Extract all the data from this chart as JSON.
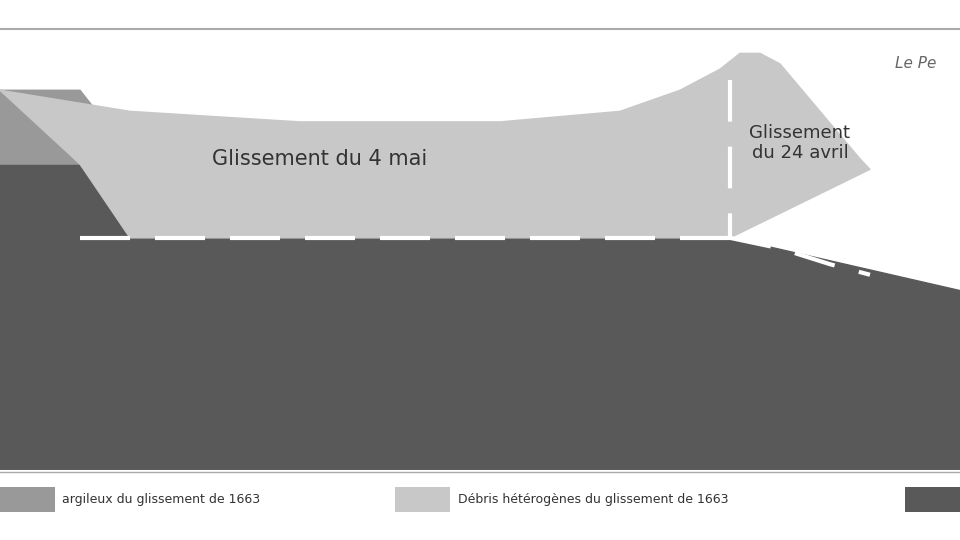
{
  "background_color": "#ffffff",
  "dark_layer_color": "#595959",
  "light_layer_color": "#c8c8c8",
  "medium_layer_color": "#999999",
  "dashed_line_color": "#ffffff",
  "label_mai": "Glissement du 4 mai",
  "label_avril": "Glissement\ndu 24 avril",
  "legend_label1": "argileux du glissement de 1663",
  "legend_label2": "Débris hétérogènes du glissement de 1663",
  "legend_color1": "#999999",
  "legend_color2": "#c8c8c8",
  "legend_color3": "#595959",
  "fig_width": 9.6,
  "fig_height": 5.4,
  "dpi": 100,
  "note_text": "Le Pe"
}
